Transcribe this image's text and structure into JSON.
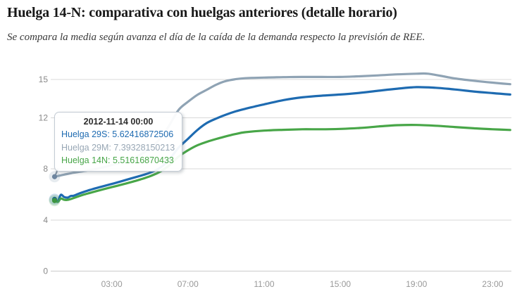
{
  "page": {
    "title": "Huelga 14-N: comparativa con huelgas anteriores (detalle horario)",
    "subtitle": "Se compara la media según avanza el día de la caída de la demanda respecto la previsión de REE."
  },
  "tooltip": {
    "header": "2012-11-14 00:00",
    "rows": [
      {
        "label": "Huelga 29S",
        "value": "5.62416872506",
        "color": "#1e6bb1"
      },
      {
        "label": "Huelga 29M",
        "value": "7.39328150213",
        "color": "#98a7b5"
      },
      {
        "label": "Huelga 14N",
        "value": "5.51616870433",
        "color": "#48a648"
      }
    ]
  },
  "chart_data": {
    "type": "line",
    "title": "",
    "xlabel": "",
    "ylabel": "",
    "x_unit": "hour of day",
    "x_ticks": [
      {
        "hour": 3,
        "label": "03:00"
      },
      {
        "hour": 7,
        "label": "07:00"
      },
      {
        "hour": 11,
        "label": "11:00"
      },
      {
        "hour": 15,
        "label": "15:00"
      },
      {
        "hour": 19,
        "label": "19:00"
      },
      {
        "hour": 23,
        "label": "23:00"
      }
    ],
    "y_ticks": [
      0,
      4,
      8,
      12,
      15
    ],
    "ylim": [
      0,
      15.8
    ],
    "xlim": [
      -0.2,
      24.0
    ],
    "grid": true,
    "legend_position": "none",
    "hovered_x": 0,
    "series": [
      {
        "name": "Huelga 29M",
        "color": "#8fa3b4",
        "marker_color": "#6e86a0",
        "points": [
          [
            0,
            7.39
          ],
          [
            0.5,
            7.55
          ],
          [
            1,
            7.7
          ],
          [
            1.5,
            7.82
          ],
          [
            2,
            7.95
          ],
          [
            2.5,
            8.1
          ],
          [
            3,
            8.3
          ],
          [
            3.5,
            8.52
          ],
          [
            4,
            8.8
          ],
          [
            4.5,
            9.12
          ],
          [
            5,
            9.6
          ],
          [
            5.5,
            10.3
          ],
          [
            6,
            11.35
          ],
          [
            6.5,
            12.6
          ],
          [
            7,
            13.25
          ],
          [
            7.5,
            13.8
          ],
          [
            8,
            14.2
          ],
          [
            8.5,
            14.6
          ],
          [
            9,
            14.88
          ],
          [
            9.5,
            15.02
          ],
          [
            10,
            15.1
          ],
          [
            11,
            15.15
          ],
          [
            12,
            15.18
          ],
          [
            13,
            15.2
          ],
          [
            14,
            15.2
          ],
          [
            15,
            15.2
          ],
          [
            16,
            15.25
          ],
          [
            17,
            15.32
          ],
          [
            18,
            15.4
          ],
          [
            19,
            15.45
          ],
          [
            19.6,
            15.45
          ],
          [
            20.5,
            15.22
          ],
          [
            21,
            15.08
          ],
          [
            22,
            14.9
          ],
          [
            23,
            14.75
          ],
          [
            23.92,
            14.63
          ]
        ]
      },
      {
        "name": "Huelga 29S",
        "color": "#1e6bb1",
        "marker_color": "#1a5d9b",
        "points": [
          [
            0,
            5.62
          ],
          [
            0.17,
            5.5
          ],
          [
            0.33,
            5.97
          ],
          [
            0.5,
            5.8
          ],
          [
            0.7,
            5.76
          ],
          [
            0.85,
            5.88
          ],
          [
            1,
            5.9
          ],
          [
            1.25,
            6.05
          ],
          [
            1.5,
            6.18
          ],
          [
            2,
            6.42
          ],
          [
            2.5,
            6.62
          ],
          [
            3,
            6.82
          ],
          [
            3.5,
            7.03
          ],
          [
            4,
            7.25
          ],
          [
            4.5,
            7.46
          ],
          [
            5,
            7.7
          ],
          [
            5.5,
            8.05
          ],
          [
            6,
            8.7
          ],
          [
            6.5,
            9.65
          ],
          [
            7,
            10.35
          ],
          [
            7.5,
            11.05
          ],
          [
            8,
            11.6
          ],
          [
            8.5,
            11.95
          ],
          [
            9,
            12.25
          ],
          [
            9.5,
            12.5
          ],
          [
            10,
            12.7
          ],
          [
            10.5,
            12.88
          ],
          [
            11,
            13.05
          ],
          [
            12,
            13.38
          ],
          [
            13,
            13.6
          ],
          [
            14,
            13.73
          ],
          [
            15,
            13.82
          ],
          [
            16,
            13.95
          ],
          [
            17,
            14.12
          ],
          [
            18,
            14.28
          ],
          [
            19,
            14.4
          ],
          [
            20,
            14.35
          ],
          [
            21,
            14.22
          ],
          [
            22,
            14.06
          ],
          [
            23,
            13.93
          ],
          [
            23.92,
            13.82
          ]
        ]
      },
      {
        "name": "Huelga 14N",
        "color": "#48a648",
        "marker_color": "#3c9440",
        "points": [
          [
            0,
            5.52
          ],
          [
            0.17,
            5.42
          ],
          [
            0.33,
            5.68
          ],
          [
            0.5,
            5.58
          ],
          [
            0.7,
            5.58
          ],
          [
            1,
            5.72
          ],
          [
            1.25,
            5.85
          ],
          [
            1.5,
            5.97
          ],
          [
            2,
            6.18
          ],
          [
            2.5,
            6.38
          ],
          [
            3,
            6.57
          ],
          [
            3.5,
            6.76
          ],
          [
            4,
            6.96
          ],
          [
            4.5,
            7.17
          ],
          [
            5,
            7.42
          ],
          [
            5.5,
            7.75
          ],
          [
            6,
            8.25
          ],
          [
            6.5,
            8.95
          ],
          [
            7,
            9.45
          ],
          [
            7.5,
            9.85
          ],
          [
            8,
            10.12
          ],
          [
            8.5,
            10.35
          ],
          [
            9,
            10.55
          ],
          [
            9.5,
            10.73
          ],
          [
            10,
            10.87
          ],
          [
            11,
            11.0
          ],
          [
            12,
            11.06
          ],
          [
            13,
            11.1
          ],
          [
            14,
            11.1
          ],
          [
            15,
            11.13
          ],
          [
            16,
            11.2
          ],
          [
            17,
            11.32
          ],
          [
            18,
            11.42
          ],
          [
            19,
            11.44
          ],
          [
            20,
            11.38
          ],
          [
            21,
            11.28
          ],
          [
            22,
            11.18
          ],
          [
            23,
            11.1
          ],
          [
            23.92,
            11.05
          ]
        ]
      }
    ]
  }
}
